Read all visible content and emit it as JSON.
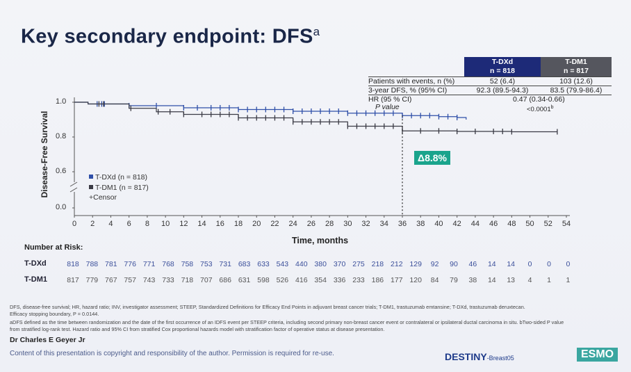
{
  "title": {
    "text": "Key secondary endpoint: DFS",
    "superscript": "a"
  },
  "summary_table": {
    "columns": [
      {
        "name": "T-DXd",
        "n": "n = 818",
        "color": "#1d2a78"
      },
      {
        "name": "T-DM1",
        "n": "n = 817",
        "color": "#55565e"
      }
    ],
    "rows": [
      {
        "label": "Patients with events, n (%)",
        "t_dxd": "52 (6.4)",
        "t_dm1": "103 (12.6)"
      },
      {
        "label": "3-year DFS, % (95% CI)",
        "t_dxd": "92.3 (89.5-94.3)",
        "t_dm1": "83.5 (79.9-86.4)"
      },
      {
        "label": "HR (95 % CI)",
        "combined": "0.47 (0.34-0.66)"
      },
      {
        "label": "P value",
        "combined": "<0.0001",
        "combined_sup": "b"
      }
    ]
  },
  "chart_data": {
    "type": "line",
    "subtype": "kaplan-meier",
    "xlabel": "Time, months",
    "ylabel": "Disease-Free Survival",
    "xlim": [
      0,
      54
    ],
    "ylim": [
      0,
      1.0
    ],
    "y_axis_break": [
      0.0,
      0.6
    ],
    "x_ticks": [
      0,
      2,
      4,
      6,
      8,
      10,
      12,
      14,
      16,
      18,
      20,
      22,
      24,
      26,
      28,
      30,
      32,
      34,
      36,
      38,
      40,
      42,
      44,
      46,
      48,
      50,
      52,
      54
    ],
    "y_ticks": [
      {
        "v": 1.0,
        "label": "1.0"
      },
      {
        "v": 0.8,
        "label": "0.8"
      },
      {
        "v": 0.6,
        "label": "0.6"
      },
      {
        "v": 0.0,
        "label": "0.0"
      }
    ],
    "legend": {
      "placement": "bottom-left",
      "entries": [
        "T-DXd (n = 818)",
        "T-DM1 (n = 817)",
        "+Censor"
      ]
    },
    "series": [
      {
        "name": "T-DXd",
        "color": "#2f4fa8",
        "x": [
          0,
          1.5,
          6,
          12,
          18,
          24,
          30,
          36,
          40,
          42,
          43
        ],
        "y": [
          1.0,
          0.99,
          0.98,
          0.968,
          0.958,
          0.948,
          0.937,
          0.923,
          0.917,
          0.912,
          0.9
        ],
        "censor": [
          2.5,
          3,
          3.3,
          6,
          9,
          12,
          13.5,
          15,
          16,
          17,
          18,
          19,
          20,
          21,
          22,
          23,
          24,
          25,
          26,
          27,
          28,
          29,
          30,
          31,
          32,
          33,
          34,
          35,
          36,
          37,
          38,
          39,
          40,
          41,
          42
        ]
      },
      {
        "name": "T-DM1",
        "color": "#3a3a44",
        "x": [
          0,
          1.5,
          6,
          9,
          12,
          18,
          24,
          30,
          36,
          42,
          48,
          53
        ],
        "y": [
          1.0,
          0.99,
          0.965,
          0.945,
          0.93,
          0.91,
          0.887,
          0.862,
          0.835,
          0.832,
          0.83,
          0.83
        ],
        "censor": [
          2.7,
          3.2,
          6.2,
          9.2,
          10.5,
          12,
          14,
          15,
          16,
          17,
          18,
          19,
          20,
          21,
          22,
          23,
          24,
          25,
          26,
          27,
          28,
          29,
          30,
          31,
          32,
          33,
          34,
          35,
          36,
          38,
          40,
          42,
          44,
          46,
          47,
          48,
          53
        ]
      }
    ],
    "annotations": [
      {
        "x": 36,
        "text": "Δ8.8%",
        "color": "#1aa48c"
      }
    ]
  },
  "risk_table": {
    "title": "Number at Risk:",
    "rows": [
      {
        "name": "T-DXd",
        "color": "#3b4f9a",
        "values": [
          818,
          788,
          781,
          776,
          771,
          768,
          758,
          753,
          731,
          683,
          633,
          543,
          440,
          380,
          370,
          275,
          218,
          212,
          129,
          92,
          90,
          46,
          14,
          14,
          0,
          0,
          0,
          0
        ]
      },
      {
        "name": "T-DM1",
        "color": "#555",
        "values": [
          817,
          779,
          767,
          757,
          743,
          733,
          718,
          707,
          686,
          631,
          598,
          526,
          416,
          354,
          336,
          233,
          186,
          177,
          120,
          84,
          79,
          38,
          14,
          13,
          4,
          1,
          1,
          0
        ]
      }
    ]
  },
  "footnotes": [
    "DFS, disease-free survival; HR, hazard ratio; INV, investigator assessment; STEEP, Standardized Definitions for Efficacy End Points in adjuvant breast cancer trials; T-DM1, trastuzumab emtansine; T-DXd, trastuzumab deruxtecan.",
    "Efficacy stopping boundary, P = 0.0144.",
    "aDFS defined as the time between randomization and the date of the first occurrence of an IDFS event per STEEP criteria, including second primary non-breast cancer event or contralateral or ipsilateral ductal carcinoma in situ. bTwo-sided P value",
    "from stratified log-rank test. Hazard ratio and 95% CI from stratified Cox proportional hazards model with stratification factor of operative status at disease presentation."
  ],
  "author": "Dr Charles E Geyer Jr",
  "copyright": "Content of this presentation is copyright and responsibility of the author. Permission is required for re-use.",
  "logos": {
    "destiny": "DESTINY",
    "destiny_suffix": "-Breast05",
    "esmo": "ESMO"
  }
}
